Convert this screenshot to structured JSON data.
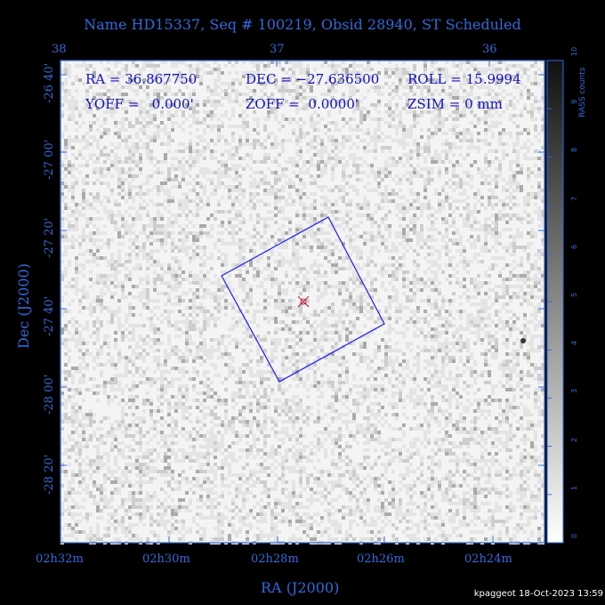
{
  "title": "Name HD15337, Seq # 100219, Obsid 28940, ST Scheduled",
  "top_ticks": [
    "38",
    "37",
    "36"
  ],
  "dec_ticks": [
    "-26 40'",
    "-27 00'",
    "-27 20'",
    "-27 40'",
    "-28 00'",
    "-28 20'"
  ],
  "ra_ticks": [
    "02h32m",
    "02h30m",
    "02h28m",
    "02h26m",
    "02h24m"
  ],
  "xlabel": "RA (J2000)",
  "ylabel": "Dec (J2000)",
  "info": {
    "ra": "RA = 36.867750",
    "dec": "DEC = −27.636500",
    "roll": "ROLL = 15.9994",
    "yoff": "YOFF =   0.000'",
    "zoff": "ZOFF =  0.0000'",
    "zsim": "ZSIM = 0 mm"
  },
  "colorbar": {
    "label": "RASS counts",
    "ticks": [
      "0",
      "1",
      "2",
      "3",
      "4",
      "5",
      "6",
      "7",
      "8",
      "9",
      "10"
    ]
  },
  "footer": "kpaggeot 18-Oct-2023 13:59",
  "colors": {
    "axis": "#2a6be0",
    "info": "#1010c8",
    "fov": "#1a1aff",
    "target": "#c02040"
  }
}
